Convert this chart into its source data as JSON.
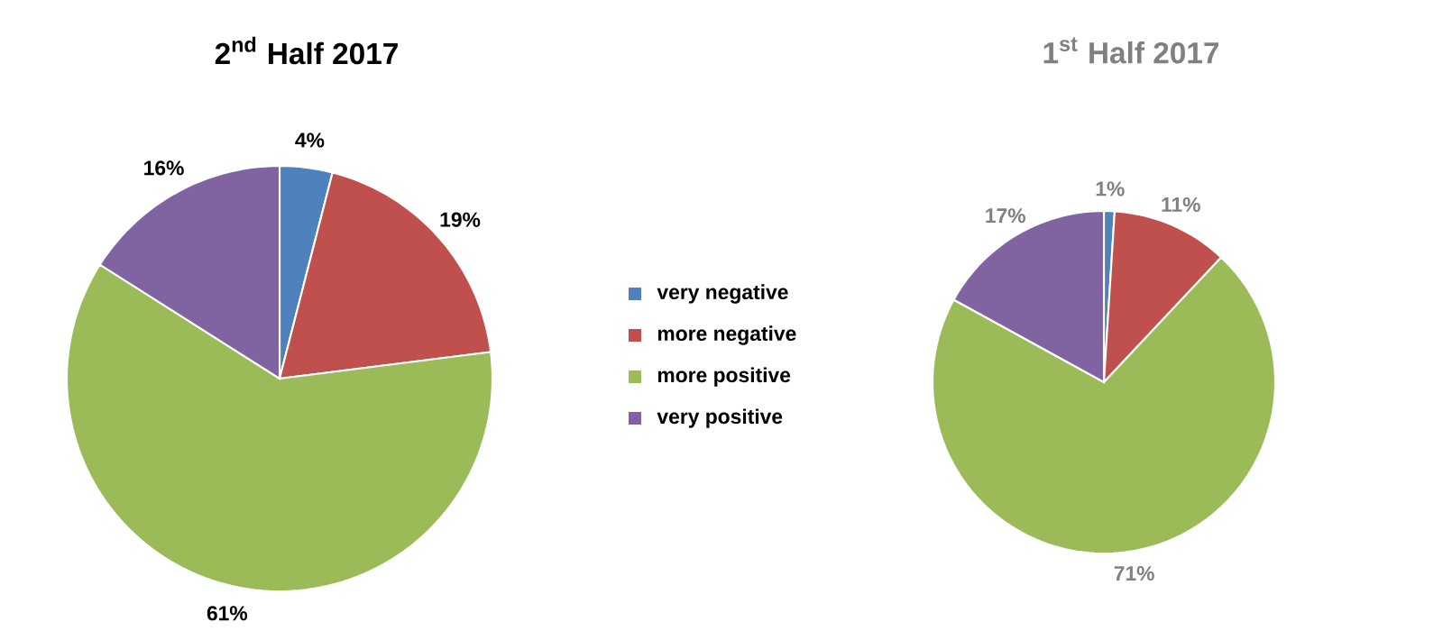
{
  "chart_data": [
    {
      "type": "pie",
      "title": "2$^{nd}$ Half 2017",
      "categories": [
        "very negative",
        "more negative",
        "more positive",
        "very positive"
      ],
      "values": [
        4,
        19,
        61,
        16
      ],
      "value_labels": [
        "4%",
        "19%",
        "61%",
        "16%"
      ],
      "colors": [
        "#4f81bd",
        "#c0504d",
        "#9bbb59",
        "#8064a2"
      ],
      "legend": "right"
    },
    {
      "type": "pie",
      "title": "1$^{st}$ Half 2017",
      "categories": [
        null,
        null,
        null,
        null
      ],
      "values": [
        1,
        11,
        71,
        17
      ],
      "value_labels": [
        "1%",
        "11%",
        "71%",
        "17%"
      ],
      "colors": [
        "#4f81bd",
        "#c0504d",
        "#9bbb59",
        "#8064a2"
      ]
    }
  ]
}
